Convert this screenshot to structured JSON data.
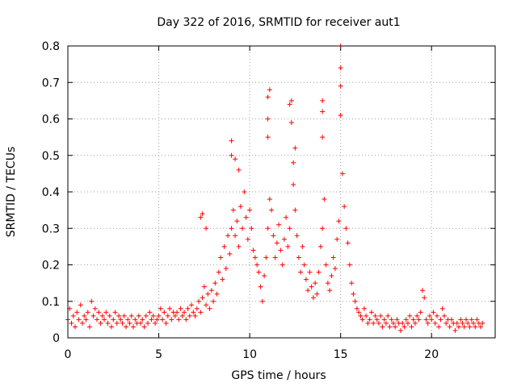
{
  "chart_data": {
    "type": "scatter",
    "title": "Day 322 of 2016, SRMTID for receiver aut1",
    "xlabel": "GPS time / hours",
    "ylabel": "SRMTID / TECUs",
    "xlim": [
      0,
      23.5
    ],
    "ylim": [
      0,
      0.8
    ],
    "xticks": [
      0,
      5,
      10,
      15,
      20
    ],
    "xtick_labels": [
      "0",
      "5",
      "10",
      "15",
      "20"
    ],
    "yticks": [
      0,
      0.1,
      0.2,
      0.3,
      0.4,
      0.5,
      0.6,
      0.7,
      0.8
    ],
    "ytick_labels": [
      "0",
      "0.1",
      "0.2",
      "0.3",
      "0.4",
      "0.5",
      "0.6",
      "0.7",
      "0.8"
    ],
    "grid": true,
    "marker": "+",
    "marker_color": "#ff0000",
    "series": [
      {
        "name": "SRMTID",
        "points": [
          [
            0.0,
            0.05
          ],
          [
            0.1,
            0.08
          ],
          [
            0.2,
            0.04
          ],
          [
            0.3,
            0.06
          ],
          [
            0.4,
            0.03
          ],
          [
            0.5,
            0.07
          ],
          [
            0.6,
            0.05
          ],
          [
            0.7,
            0.09
          ],
          [
            0.8,
            0.04
          ],
          [
            0.9,
            0.06
          ],
          [
            1.0,
            0.05
          ],
          [
            1.1,
            0.07
          ],
          [
            1.2,
            0.03
          ],
          [
            1.3,
            0.1
          ],
          [
            1.4,
            0.06
          ],
          [
            1.5,
            0.08
          ],
          [
            1.6,
            0.05
          ],
          [
            1.7,
            0.07
          ],
          [
            1.8,
            0.04
          ],
          [
            1.9,
            0.06
          ],
          [
            2.0,
            0.05
          ],
          [
            2.1,
            0.07
          ],
          [
            2.2,
            0.04
          ],
          [
            2.3,
            0.06
          ],
          [
            2.4,
            0.03
          ],
          [
            2.5,
            0.05
          ],
          [
            2.6,
            0.07
          ],
          [
            2.7,
            0.04
          ],
          [
            2.8,
            0.06
          ],
          [
            2.9,
            0.05
          ],
          [
            3.0,
            0.04
          ],
          [
            3.1,
            0.06
          ],
          [
            3.2,
            0.03
          ],
          [
            3.3,
            0.05
          ],
          [
            3.4,
            0.04
          ],
          [
            3.5,
            0.06
          ],
          [
            3.6,
            0.03
          ],
          [
            3.7,
            0.05
          ],
          [
            3.8,
            0.04
          ],
          [
            3.9,
            0.06
          ],
          [
            4.0,
            0.04
          ],
          [
            4.1,
            0.05
          ],
          [
            4.2,
            0.03
          ],
          [
            4.3,
            0.06
          ],
          [
            4.4,
            0.04
          ],
          [
            4.5,
            0.07
          ],
          [
            4.6,
            0.05
          ],
          [
            4.7,
            0.06
          ],
          [
            4.8,
            0.04
          ],
          [
            4.9,
            0.05
          ],
          [
            5.0,
            0.06
          ],
          [
            5.1,
            0.08
          ],
          [
            5.2,
            0.05
          ],
          [
            5.3,
            0.07
          ],
          [
            5.4,
            0.04
          ],
          [
            5.5,
            0.06
          ],
          [
            5.6,
            0.08
          ],
          [
            5.7,
            0.05
          ],
          [
            5.8,
            0.07
          ],
          [
            5.9,
            0.06
          ],
          [
            6.0,
            0.07
          ],
          [
            6.1,
            0.05
          ],
          [
            6.2,
            0.08
          ],
          [
            6.3,
            0.06
          ],
          [
            6.4,
            0.07
          ],
          [
            6.5,
            0.05
          ],
          [
            6.6,
            0.08
          ],
          [
            6.7,
            0.06
          ],
          [
            6.8,
            0.09
          ],
          [
            6.9,
            0.07
          ],
          [
            7.0,
            0.06
          ],
          [
            7.1,
            0.08
          ],
          [
            7.2,
            0.1
          ],
          [
            7.3,
            0.07
          ],
          [
            7.4,
            0.11
          ],
          [
            7.5,
            0.14
          ],
          [
            7.6,
            0.09
          ],
          [
            7.7,
            0.12
          ],
          [
            7.8,
            0.08
          ],
          [
            7.9,
            0.13
          ],
          [
            7.3,
            0.33
          ],
          [
            7.4,
            0.34
          ],
          [
            7.6,
            0.3
          ],
          [
            8.0,
            0.1
          ],
          [
            8.1,
            0.15
          ],
          [
            8.2,
            0.12
          ],
          [
            8.3,
            0.18
          ],
          [
            8.4,
            0.22
          ],
          [
            8.5,
            0.16
          ],
          [
            8.6,
            0.25
          ],
          [
            8.7,
            0.19
          ],
          [
            8.8,
            0.28
          ],
          [
            8.9,
            0.23
          ],
          [
            9.0,
            0.3
          ],
          [
            9.0,
            0.5
          ],
          [
            9.0,
            0.54
          ],
          [
            9.1,
            0.35
          ],
          [
            9.2,
            0.28
          ],
          [
            9.2,
            0.49
          ],
          [
            9.3,
            0.32
          ],
          [
            9.4,
            0.25
          ],
          [
            9.4,
            0.46
          ],
          [
            9.5,
            0.36
          ],
          [
            9.6,
            0.3
          ],
          [
            9.7,
            0.4
          ],
          [
            9.8,
            0.33
          ],
          [
            9.9,
            0.27
          ],
          [
            10.0,
            0.35
          ],
          [
            10.1,
            0.3
          ],
          [
            10.2,
            0.24
          ],
          [
            10.3,
            0.22
          ],
          [
            10.4,
            0.2
          ],
          [
            10.5,
            0.18
          ],
          [
            10.6,
            0.14
          ],
          [
            10.7,
            0.1
          ],
          [
            10.8,
            0.17
          ],
          [
            10.9,
            0.22
          ],
          [
            11.0,
            0.3
          ],
          [
            11.0,
            0.55
          ],
          [
            11.0,
            0.6
          ],
          [
            11.0,
            0.66
          ],
          [
            11.1,
            0.68
          ],
          [
            11.1,
            0.38
          ],
          [
            11.2,
            0.35
          ],
          [
            11.3,
            0.28
          ],
          [
            11.4,
            0.22
          ],
          [
            11.5,
            0.26
          ],
          [
            11.6,
            0.31
          ],
          [
            11.7,
            0.24
          ],
          [
            11.8,
            0.2
          ],
          [
            11.9,
            0.27
          ],
          [
            12.0,
            0.33
          ],
          [
            12.1,
            0.25
          ],
          [
            12.2,
            0.3
          ],
          [
            12.2,
            0.64
          ],
          [
            12.3,
            0.65
          ],
          [
            12.3,
            0.59
          ],
          [
            12.4,
            0.42
          ],
          [
            12.4,
            0.48
          ],
          [
            12.5,
            0.35
          ],
          [
            12.5,
            0.52
          ],
          [
            12.6,
            0.28
          ],
          [
            12.7,
            0.22
          ],
          [
            12.8,
            0.18
          ],
          [
            12.9,
            0.25
          ],
          [
            13.0,
            0.2
          ],
          [
            13.1,
            0.16
          ],
          [
            13.2,
            0.13
          ],
          [
            13.3,
            0.18
          ],
          [
            13.4,
            0.14
          ],
          [
            13.5,
            0.11
          ],
          [
            13.6,
            0.15
          ],
          [
            13.7,
            0.12
          ],
          [
            13.8,
            0.18
          ],
          [
            13.9,
            0.25
          ],
          [
            14.0,
            0.3
          ],
          [
            14.0,
            0.55
          ],
          [
            14.0,
            0.62
          ],
          [
            14.0,
            0.65
          ],
          [
            14.1,
            0.38
          ],
          [
            14.2,
            0.2
          ],
          [
            14.3,
            0.15
          ],
          [
            14.4,
            0.13
          ],
          [
            14.5,
            0.17
          ],
          [
            14.6,
            0.22
          ],
          [
            14.7,
            0.19
          ],
          [
            14.8,
            0.27
          ],
          [
            14.9,
            0.32
          ],
          [
            15.0,
            0.8
          ],
          [
            15.0,
            0.74
          ],
          [
            15.0,
            0.69
          ],
          [
            15.0,
            0.61
          ],
          [
            15.1,
            0.45
          ],
          [
            15.2,
            0.36
          ],
          [
            15.3,
            0.3
          ],
          [
            15.4,
            0.26
          ],
          [
            15.5,
            0.2
          ],
          [
            15.6,
            0.15
          ],
          [
            15.7,
            0.12
          ],
          [
            15.8,
            0.1
          ],
          [
            15.9,
            0.08
          ],
          [
            16.0,
            0.07
          ],
          [
            16.1,
            0.06
          ],
          [
            16.2,
            0.05
          ],
          [
            16.3,
            0.08
          ],
          [
            16.4,
            0.06
          ],
          [
            16.5,
            0.04
          ],
          [
            16.6,
            0.05
          ],
          [
            16.7,
            0.07
          ],
          [
            16.8,
            0.04
          ],
          [
            16.9,
            0.06
          ],
          [
            17.0,
            0.05
          ],
          [
            17.1,
            0.04
          ],
          [
            17.2,
            0.06
          ],
          [
            17.3,
            0.03
          ],
          [
            17.4,
            0.05
          ],
          [
            17.5,
            0.04
          ],
          [
            17.6,
            0.06
          ],
          [
            17.7,
            0.03
          ],
          [
            17.8,
            0.05
          ],
          [
            17.9,
            0.04
          ],
          [
            18.0,
            0.03
          ],
          [
            18.1,
            0.05
          ],
          [
            18.2,
            0.04
          ],
          [
            18.3,
            0.02
          ],
          [
            18.4,
            0.04
          ],
          [
            18.5,
            0.03
          ],
          [
            18.6,
            0.05
          ],
          [
            18.7,
            0.04
          ],
          [
            18.8,
            0.06
          ],
          [
            18.9,
            0.03
          ],
          [
            19.0,
            0.05
          ],
          [
            19.1,
            0.04
          ],
          [
            19.2,
            0.06
          ],
          [
            19.3,
            0.05
          ],
          [
            19.4,
            0.07
          ],
          [
            19.5,
            0.13
          ],
          [
            19.6,
            0.11
          ],
          [
            19.7,
            0.05
          ],
          [
            19.8,
            0.04
          ],
          [
            19.9,
            0.06
          ],
          [
            20.0,
            0.05
          ],
          [
            20.1,
            0.07
          ],
          [
            20.2,
            0.04
          ],
          [
            20.3,
            0.06
          ],
          [
            20.4,
            0.03
          ],
          [
            20.5,
            0.05
          ],
          [
            20.6,
            0.08
          ],
          [
            20.7,
            0.06
          ],
          [
            20.8,
            0.04
          ],
          [
            20.9,
            0.05
          ],
          [
            21.0,
            0.03
          ],
          [
            21.1,
            0.05
          ],
          [
            21.2,
            0.04
          ],
          [
            21.3,
            0.02
          ],
          [
            21.4,
            0.04
          ],
          [
            21.5,
            0.03
          ],
          [
            21.6,
            0.05
          ],
          [
            21.7,
            0.04
          ],
          [
            21.8,
            0.03
          ],
          [
            21.9,
            0.05
          ],
          [
            22.0,
            0.04
          ],
          [
            22.1,
            0.03
          ],
          [
            22.2,
            0.05
          ],
          [
            22.3,
            0.04
          ],
          [
            22.4,
            0.03
          ],
          [
            22.5,
            0.05
          ],
          [
            22.6,
            0.04
          ],
          [
            22.7,
            0.03
          ],
          [
            22.8,
            0.04
          ]
        ]
      }
    ]
  }
}
